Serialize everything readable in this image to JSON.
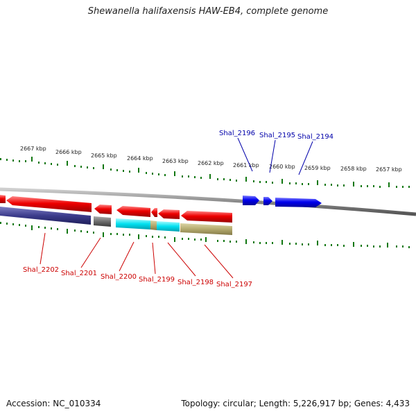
{
  "title": "Shewanella halifaxensis HAW-EB4, complete genome",
  "footer": {
    "accession": "Accession: NC_010334",
    "summary": "Topology: circular; Length: 5,226,917 bp; Genes: 4,433"
  },
  "scale_labels": [
    "2667 kbp",
    "2666 kbp",
    "2665 kbp",
    "2664 kbp",
    "2663 kbp",
    "2662 kbp",
    "2661 kbp",
    "2660 kbp",
    "2659 kbp",
    "2658 kbp",
    "2657 kbp"
  ],
  "forward_genes": [
    "Shal_2196",
    "Shal_2195",
    "Shal_2194"
  ],
  "reverse_genes": [
    "Shal_2202",
    "Shal_2201",
    "Shal_2200",
    "Shal_2199",
    "Shal_2198",
    "Shal_2197"
  ],
  "colors": {
    "forward_gene": "#0000ee",
    "reverse_gene": "#ee0000",
    "tick": "#117711",
    "backbone": "#888888",
    "cog_navy": "#3c3c8c",
    "cog_grey": "#6e6e6e",
    "cog_cyan": "#00e0f0",
    "cog_khaki": "#b4aa6e"
  }
}
